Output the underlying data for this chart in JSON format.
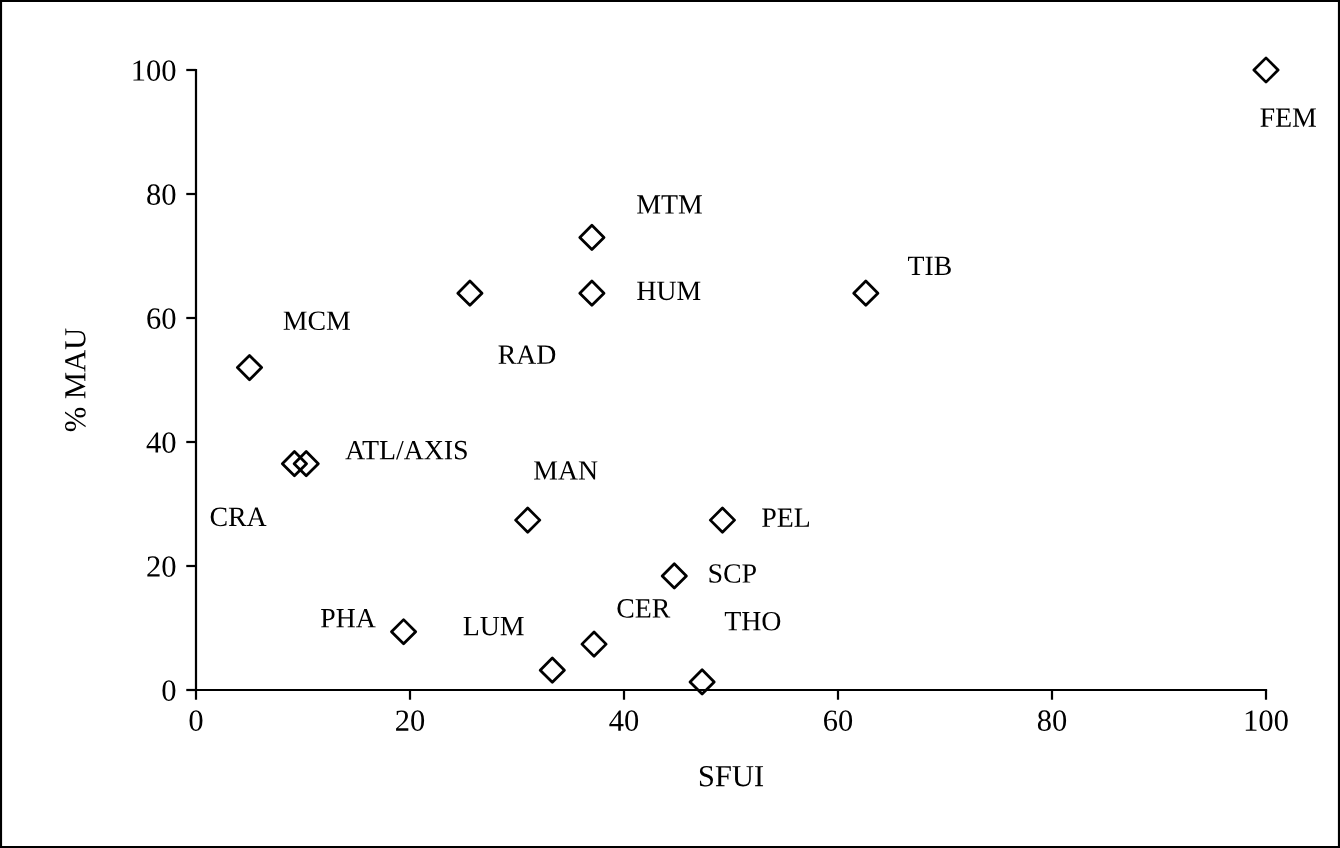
{
  "chart_data": {
    "type": "scatter",
    "xlabel": "SFUI",
    "ylabel": "% MAU",
    "xlim": [
      0,
      100
    ],
    "xticks": [
      0,
      20,
      40,
      60,
      80,
      100
    ],
    "ylim": [
      0,
      100
    ],
    "yticks": [
      0,
      20,
      40,
      60,
      80,
      100
    ],
    "grid": false,
    "marker": "diamond",
    "series": [
      {
        "color": "#000000",
        "x": [
          100,
          37,
          37,
          25.6,
          62.6,
          5,
          9.2,
          10.3,
          31,
          49.2,
          44.7,
          19.4,
          37.2,
          33.3,
          47.3
        ],
        "values": [
          100,
          73,
          64,
          64,
          64,
          52,
          36.5,
          36.5,
          27.4,
          27.4,
          18.4,
          9.4,
          7.4,
          3.2,
          1.3
        ]
      }
    ],
    "annotations": [
      {
        "text": "FEM",
        "x": 100,
        "y": 100
      },
      {
        "text": "MTM",
        "x": 37,
        "y": 73
      },
      {
        "text": "HUM",
        "x": 37,
        "y": 64
      },
      {
        "text": "RAD",
        "x": 25.6,
        "y": 64
      },
      {
        "text": "TIB",
        "x": 62.6,
        "y": 64
      },
      {
        "text": "MCM",
        "x": 5,
        "y": 52
      },
      {
        "text": "CRA",
        "x": 9.2,
        "y": 36.5
      },
      {
        "text": "ATL/AXIS",
        "x": 10.3,
        "y": 36.5
      },
      {
        "text": "MAN",
        "x": 31,
        "y": 27.4
      },
      {
        "text": "PEL",
        "x": 49.2,
        "y": 27.4
      },
      {
        "text": "SCP",
        "x": 44.7,
        "y": 18.4
      },
      {
        "text": "PHA",
        "x": 19.4,
        "y": 9.4
      },
      {
        "text": "CER",
        "x": 37.2,
        "y": 7.4
      },
      {
        "text": "LUM",
        "x": 33.3,
        "y": 3.2
      },
      {
        "text": "THO",
        "x": 47.3,
        "y": 1.3
      }
    ]
  }
}
